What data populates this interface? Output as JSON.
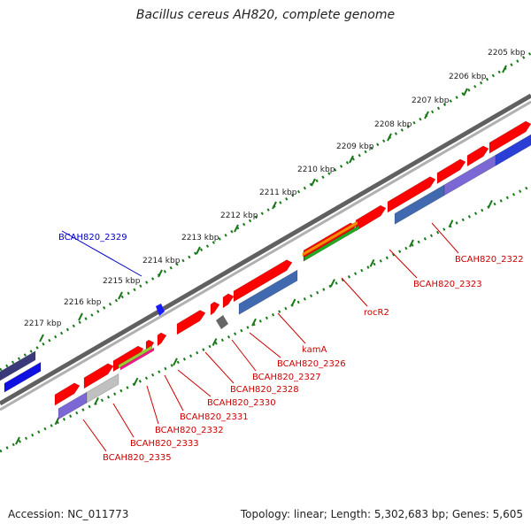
{
  "title": "Bacillus cereus AH820, complete genome",
  "footer": {
    "accession": "Accession: NC_011773",
    "topology": "Topology: linear; Length: 5,302,683 bp; Genes: 5,605"
  },
  "colors": {
    "forward_gene": "#ff0000",
    "reverse_gene": "#4169b0",
    "highlight_label": "#0000cc",
    "gene_label": "#cc0000",
    "ruler_dots": "#1a7a1a",
    "backbone": "#808080"
  },
  "scale_ticks": [
    "2205 kbp",
    "2206 kbp",
    "2207 kbp",
    "2208 kbp",
    "2209 kbp",
    "2210 kbp",
    "2211 kbp",
    "2212 kbp",
    "2213 kbp",
    "2214 kbp",
    "2215 kbp",
    "2216 kbp",
    "2217 kbp"
  ],
  "gene_labels": [
    {
      "text": "BCAH820_2322",
      "color": "red"
    },
    {
      "text": "BCAH820_2323",
      "color": "red"
    },
    {
      "text": "rocR2",
      "color": "red"
    },
    {
      "text": "kamA",
      "color": "red"
    },
    {
      "text": "BCAH820_2326",
      "color": "red"
    },
    {
      "text": "BCAH820_2327",
      "color": "red"
    },
    {
      "text": "BCAH820_2328",
      "color": "red"
    },
    {
      "text": "BCAH820_2330",
      "color": "red"
    },
    {
      "text": "BCAH820_2331",
      "color": "red"
    },
    {
      "text": "BCAH820_2332",
      "color": "red"
    },
    {
      "text": "BCAH820_2333",
      "color": "red"
    },
    {
      "text": "BCAH820_2335",
      "color": "red"
    },
    {
      "text": "BCAH820_2329",
      "color": "blue"
    }
  ]
}
